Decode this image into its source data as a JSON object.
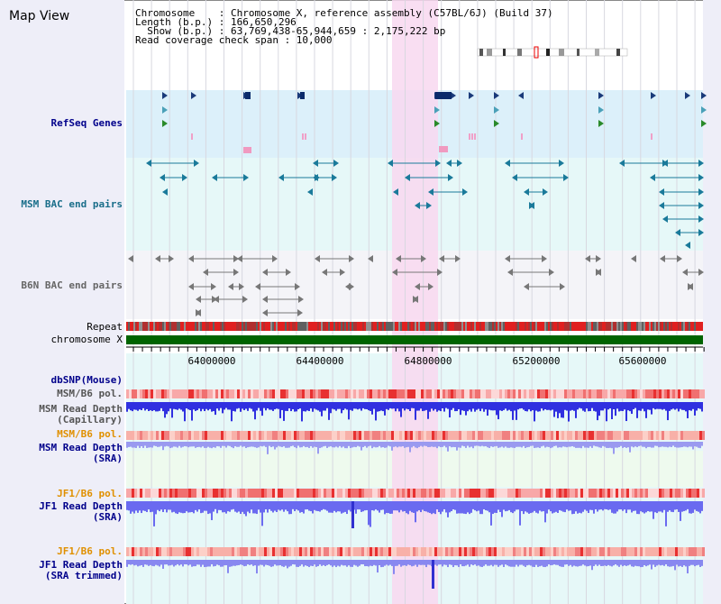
{
  "title": "Map View",
  "info": {
    "line1": "Chromosome    : Chromosome X, reference assembly (C57BL/6J) (Build 37)",
    "line2": "Length (b.p.) : 166,650,296",
    "line3": "  Show (b.p.) : 63,769,438-65,944,659 : 2,175,222 bp",
    "line4": "Read coverage check span : 10,000"
  },
  "tracks": {
    "refseq": "RefSeq Genes",
    "msm_bac": "MSM BAC end pairs",
    "b6n_bac": "B6N BAC end pairs",
    "repeat": "Repeat",
    "chromosome": "chromosome X",
    "dbsnp": "dbSNP(Mouse)",
    "msm_pol1": "MSM/B6 pol.",
    "msm_depth_cap": "MSM Read Depth\n(Capillary)",
    "msm_pol2": "MSM/B6 pol.",
    "msm_depth_sra": "MSM Read Depth\n(SRA)",
    "jf1_pol1": "JF1/B6 pol.",
    "jf1_depth_sra": "JF1 Read Depth\n(SRA)",
    "jf1_pol2": "JF1/B6 pol.",
    "jf1_depth_trim": "JF1 Read Depth\n(SRA trimmed)"
  },
  "axis": {
    "ticks": [
      "64000000",
      "64400000",
      "64800000",
      "65200000",
      "65600000"
    ]
  },
  "colors": {
    "refseq_bg": "#dcf0fa",
    "msm_bg": "#e6f8f8",
    "b6n_bg": "#f4f4f8",
    "highlight": "#f8d8f0",
    "refseq_label": "#00008b",
    "msm_label": "#1a6e8a",
    "b6n_label": "#666666",
    "dbsnp_label": "#00008b",
    "pol_msm_label": "#555555",
    "pol_orange_label": "#e09000",
    "depth_label": "#00008b",
    "chrom_bar": "#006400"
  }
}
